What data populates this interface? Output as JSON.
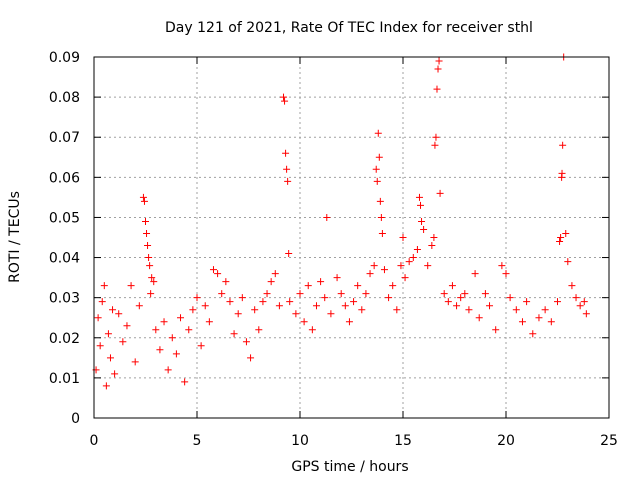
{
  "chart_data": {
    "type": "scatter",
    "title": "Day 121 of 2021, Rate Of TEC Index for receiver sthl",
    "xlabel": "GPS time / hours",
    "ylabel": "ROTI / TECUs",
    "xlim": [
      0,
      25
    ],
    "ylim": [
      0,
      0.09
    ],
    "xticks": [
      0,
      5,
      10,
      15,
      20,
      25
    ],
    "yticks": [
      0,
      0.01,
      0.02,
      0.03,
      0.04,
      0.05,
      0.06,
      0.07,
      0.08,
      0.09
    ],
    "xtick_labels": [
      "0",
      "5",
      "10",
      "15",
      "20",
      "25"
    ],
    "ytick_labels": [
      "0",
      "0.01",
      "0.02",
      "0.03",
      "0.04",
      "0.05",
      "0.06",
      "0.07",
      "0.08",
      "0.09"
    ],
    "grid": true,
    "marker": "+",
    "marker_color": "#ff0000",
    "series": [
      {
        "name": "ROTI",
        "points": [
          [
            0.1,
            0.012
          ],
          [
            0.2,
            0.025
          ],
          [
            0.3,
            0.018
          ],
          [
            0.4,
            0.029
          ],
          [
            0.5,
            0.033
          ],
          [
            0.6,
            0.008
          ],
          [
            0.7,
            0.021
          ],
          [
            0.8,
            0.015
          ],
          [
            0.9,
            0.027
          ],
          [
            1.0,
            0.011
          ],
          [
            1.2,
            0.026
          ],
          [
            1.4,
            0.019
          ],
          [
            1.6,
            0.023
          ],
          [
            1.8,
            0.033
          ],
          [
            2.0,
            0.014
          ],
          [
            2.2,
            0.028
          ],
          [
            2.4,
            0.055
          ],
          [
            2.45,
            0.054
          ],
          [
            2.5,
            0.049
          ],
          [
            2.55,
            0.046
          ],
          [
            2.6,
            0.043
          ],
          [
            2.65,
            0.04
          ],
          [
            2.7,
            0.038
          ],
          [
            2.75,
            0.031
          ],
          [
            2.8,
            0.035
          ],
          [
            2.9,
            0.034
          ],
          [
            3.0,
            0.022
          ],
          [
            3.2,
            0.017
          ],
          [
            3.4,
            0.024
          ],
          [
            3.6,
            0.012
          ],
          [
            3.8,
            0.02
          ],
          [
            4.0,
            0.016
          ],
          [
            4.2,
            0.025
          ],
          [
            4.4,
            0.009
          ],
          [
            4.6,
            0.022
          ],
          [
            4.8,
            0.027
          ],
          [
            5.0,
            0.03
          ],
          [
            5.2,
            0.018
          ],
          [
            5.4,
            0.028
          ],
          [
            5.6,
            0.024
          ],
          [
            5.8,
            0.037
          ],
          [
            6.0,
            0.036
          ],
          [
            6.2,
            0.031
          ],
          [
            6.4,
            0.034
          ],
          [
            6.6,
            0.029
          ],
          [
            6.8,
            0.021
          ],
          [
            7.0,
            0.026
          ],
          [
            7.2,
            0.03
          ],
          [
            7.4,
            0.019
          ],
          [
            7.6,
            0.015
          ],
          [
            7.8,
            0.027
          ],
          [
            8.0,
            0.022
          ],
          [
            8.2,
            0.029
          ],
          [
            8.4,
            0.031
          ],
          [
            8.6,
            0.034
          ],
          [
            8.8,
            0.036
          ],
          [
            9.0,
            0.028
          ],
          [
            9.2,
            0.08
          ],
          [
            9.25,
            0.079
          ],
          [
            9.3,
            0.066
          ],
          [
            9.35,
            0.062
          ],
          [
            9.4,
            0.059
          ],
          [
            9.45,
            0.041
          ],
          [
            9.5,
            0.029
          ],
          [
            9.8,
            0.026
          ],
          [
            10.0,
            0.031
          ],
          [
            10.2,
            0.024
          ],
          [
            10.4,
            0.033
          ],
          [
            10.6,
            0.022
          ],
          [
            10.8,
            0.028
          ],
          [
            11.0,
            0.034
          ],
          [
            11.2,
            0.03
          ],
          [
            11.3,
            0.05
          ],
          [
            11.5,
            0.026
          ],
          [
            11.8,
            0.035
          ],
          [
            12.0,
            0.031
          ],
          [
            12.2,
            0.028
          ],
          [
            12.4,
            0.024
          ],
          [
            12.6,
            0.029
          ],
          [
            12.8,
            0.033
          ],
          [
            13.0,
            0.027
          ],
          [
            13.2,
            0.031
          ],
          [
            13.4,
            0.036
          ],
          [
            13.6,
            0.038
          ],
          [
            13.7,
            0.062
          ],
          [
            13.75,
            0.059
          ],
          [
            13.8,
            0.071
          ],
          [
            13.85,
            0.065
          ],
          [
            13.9,
            0.054
          ],
          [
            13.95,
            0.05
          ],
          [
            14.0,
            0.046
          ],
          [
            14.1,
            0.037
          ],
          [
            14.3,
            0.03
          ],
          [
            14.5,
            0.033
          ],
          [
            14.7,
            0.027
          ],
          [
            14.9,
            0.038
          ],
          [
            15.0,
            0.045
          ],
          [
            15.1,
            0.035
          ],
          [
            15.3,
            0.039
          ],
          [
            15.5,
            0.04
          ],
          [
            15.7,
            0.042
          ],
          [
            15.8,
            0.055
          ],
          [
            15.85,
            0.053
          ],
          [
            15.9,
            0.049
          ],
          [
            16.0,
            0.047
          ],
          [
            16.2,
            0.038
          ],
          [
            16.4,
            0.043
          ],
          [
            16.5,
            0.045
          ],
          [
            16.55,
            0.068
          ],
          [
            16.6,
            0.07
          ],
          [
            16.65,
            0.082
          ],
          [
            16.7,
            0.087
          ],
          [
            16.75,
            0.089
          ],
          [
            16.8,
            0.056
          ],
          [
            17.0,
            0.031
          ],
          [
            17.2,
            0.029
          ],
          [
            17.4,
            0.033
          ],
          [
            17.6,
            0.028
          ],
          [
            17.8,
            0.03
          ],
          [
            18.0,
            0.031
          ],
          [
            18.2,
            0.027
          ],
          [
            18.5,
            0.036
          ],
          [
            18.7,
            0.025
          ],
          [
            19.0,
            0.031
          ],
          [
            19.2,
            0.028
          ],
          [
            19.5,
            0.022
          ],
          [
            19.8,
            0.038
          ],
          [
            20.0,
            0.036
          ],
          [
            20.2,
            0.03
          ],
          [
            20.5,
            0.027
          ],
          [
            20.8,
            0.024
          ],
          [
            21.0,
            0.029
          ],
          [
            21.3,
            0.021
          ],
          [
            21.6,
            0.025
          ],
          [
            21.9,
            0.027
          ],
          [
            22.2,
            0.024
          ],
          [
            22.5,
            0.029
          ],
          [
            22.6,
            0.044
          ],
          [
            22.65,
            0.045
          ],
          [
            22.7,
            0.06
          ],
          [
            22.72,
            0.061
          ],
          [
            22.75,
            0.068
          ],
          [
            22.8,
            0.09
          ],
          [
            22.9,
            0.046
          ],
          [
            23.0,
            0.039
          ],
          [
            23.2,
            0.033
          ],
          [
            23.4,
            0.03
          ],
          [
            23.6,
            0.028
          ],
          [
            23.8,
            0.029
          ],
          [
            23.9,
            0.026
          ]
        ]
      }
    ]
  }
}
